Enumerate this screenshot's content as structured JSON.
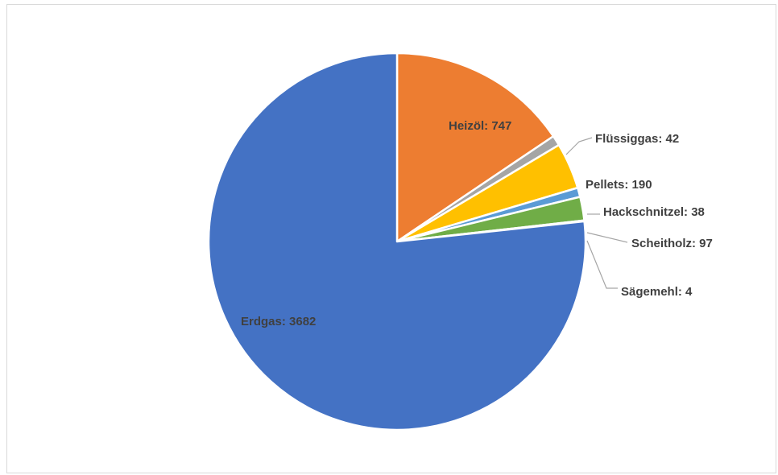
{
  "chart_data": {
    "type": "pie",
    "title": "",
    "legend": "none",
    "start_angle_deg": 90,
    "direction": "clockwise",
    "slices": [
      {
        "name": "Heizöl",
        "value": 747,
        "label": "Heizöl: 747",
        "color": "#ED7D31",
        "label_position": "inside"
      },
      {
        "name": "Flüssiggas",
        "value": 42,
        "label": "Flüssiggas: 42",
        "color": "#A5A5A5",
        "label_position": "outside"
      },
      {
        "name": "Pellets",
        "value": 190,
        "label": "Pellets: 190",
        "color": "#FFC000",
        "label_position": "outside"
      },
      {
        "name": "Hackschnitzel",
        "value": 38,
        "label": "Hackschnitzel: 38",
        "color": "#5B9BD5",
        "label_position": "outside"
      },
      {
        "name": "Scheitholz",
        "value": 97,
        "label": "Scheitholz: 97",
        "color": "#70AD47",
        "label_position": "outside"
      },
      {
        "name": "Sägemehl",
        "value": 4,
        "label": "Sägemehl: 4",
        "color": "#264478",
        "label_position": "outside"
      },
      {
        "name": "Erdgas",
        "value": 3682,
        "label": "Erdgas: 3682",
        "color": "#4472C4",
        "label_position": "inside"
      }
    ]
  }
}
